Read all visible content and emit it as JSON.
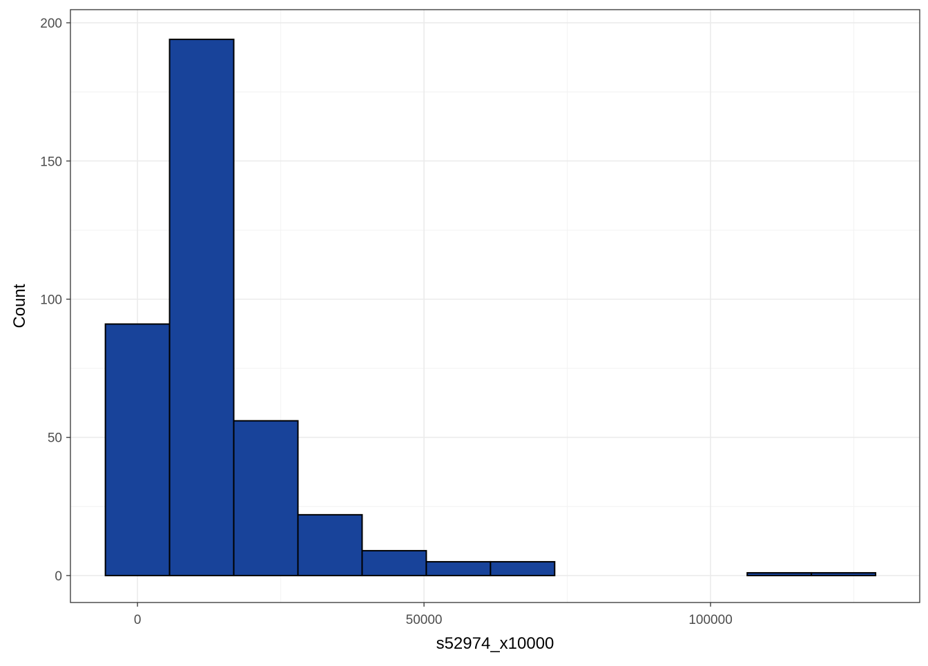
{
  "chart_data": {
    "type": "bar",
    "xlabel": "s52974_x10000",
    "ylabel": "Count",
    "xlim": [
      -11700,
      136500
    ],
    "ylim": [
      -9.75,
      204.75
    ],
    "x_ticks": [
      0,
      50000,
      100000
    ],
    "x_tick_labels": [
      "0",
      "50000",
      "100000"
    ],
    "y_ticks": [
      0,
      50,
      100,
      150,
      200
    ],
    "y_tick_labels": [
      "0",
      "50",
      "100",
      "150",
      "200"
    ],
    "bin_width": 11200,
    "bins": [
      {
        "x0": -5600,
        "x1": 5600,
        "count": 91
      },
      {
        "x0": 5600,
        "x1": 16800,
        "count": 194
      },
      {
        "x0": 16800,
        "x1": 28000,
        "count": 56
      },
      {
        "x0": 28000,
        "x1": 39200,
        "count": 22
      },
      {
        "x0": 39200,
        "x1": 50400,
        "count": 9
      },
      {
        "x0": 50400,
        "x1": 61600,
        "count": 5
      },
      {
        "x0": 61600,
        "x1": 72800,
        "count": 5
      },
      {
        "x0": 72800,
        "x1": 84000,
        "count": 0
      },
      {
        "x0": 84000,
        "x1": 95200,
        "count": 0
      },
      {
        "x0": 95200,
        "x1": 106400,
        "count": 0
      },
      {
        "x0": 106400,
        "x1": 117600,
        "count": 1
      },
      {
        "x0": 117600,
        "x1": 128800,
        "count": 1
      }
    ],
    "grid": true,
    "legend": "none",
    "colors": {
      "bar_fill": "#18439A",
      "bar_stroke": "#000000",
      "grid_major": "#EBEBEB",
      "grid_minor": "#F3F3F3",
      "panel_border": "#333333",
      "tick_text": "#4D4D4D"
    }
  }
}
